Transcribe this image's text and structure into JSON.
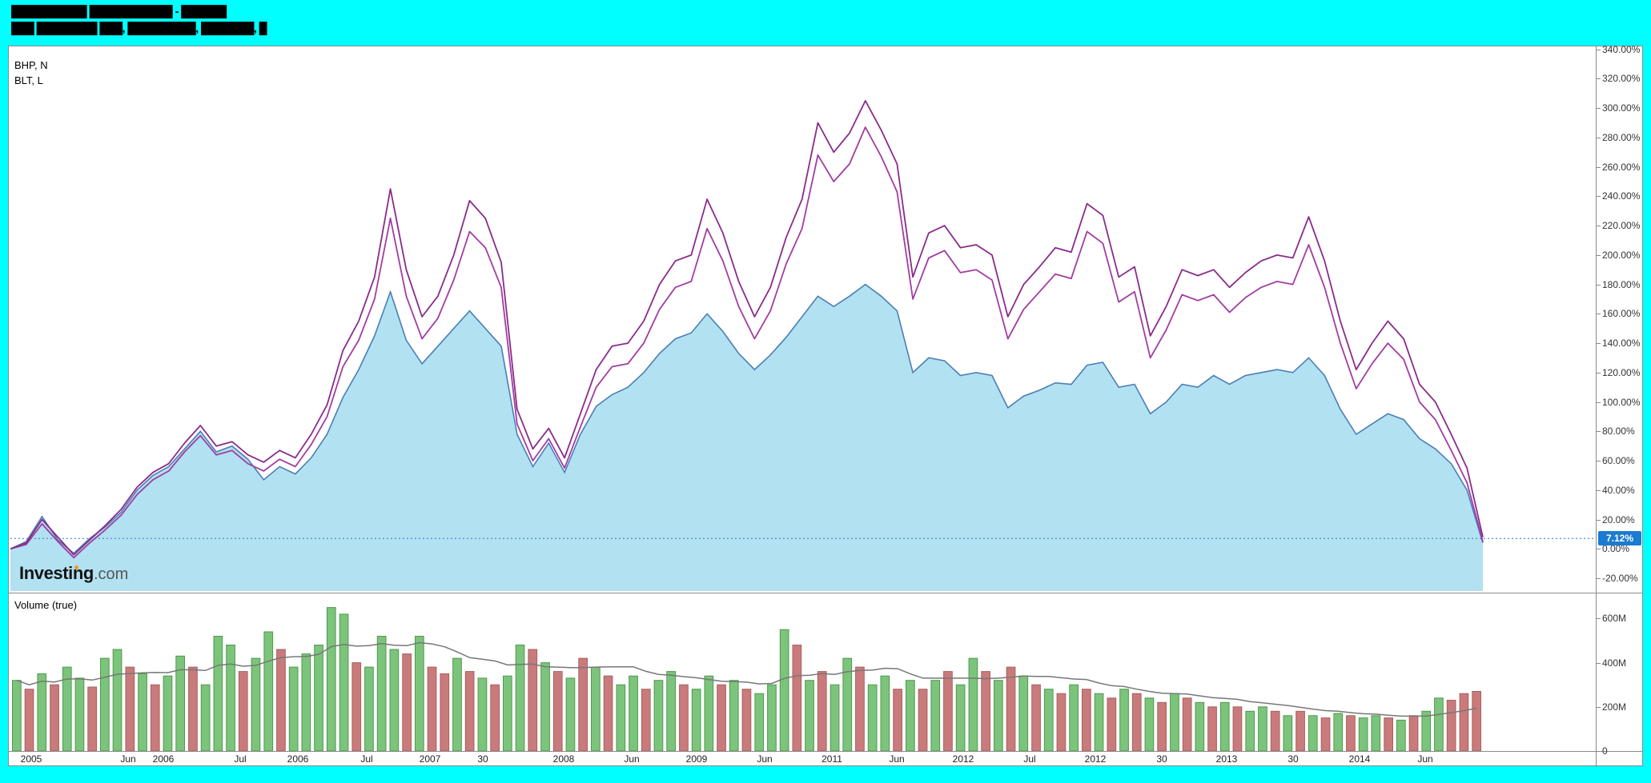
{
  "header": {
    "line1": "██████████ ███████████ - ██████",
    "line2": "███ ████████ ███, █████████, ███████, █"
  },
  "legend": {
    "series1": "BHP, N",
    "series2": "BLT, L"
  },
  "price_axis": {
    "labels": [
      "340.00%",
      "320.00%",
      "300.00%",
      "280.00%",
      "260.00%",
      "240.00%",
      "220.00%",
      "200.00%",
      "180.00%",
      "160.00%",
      "140.00%",
      "120.00%",
      "100.00%",
      "80.00%",
      "60.00%",
      "40.00%",
      "20.00%",
      "0.00%",
      "-20.00%"
    ],
    "badge": "7.12%",
    "badge_color": "#1b7bd0"
  },
  "volume_axis": {
    "labels": [
      "600M",
      "400M",
      "200M",
      "0"
    ]
  },
  "volume_panel": {
    "label": "Volume (true)"
  },
  "watermark": {
    "bold": "Investing",
    "light": ".com",
    "accent_color": "#f7941d"
  },
  "x_axis": {
    "labels": [
      {
        "t": "2005",
        "f": 0.014
      },
      {
        "t": "Jun",
        "f": 0.08
      },
      {
        "t": "2006",
        "f": 0.104
      },
      {
        "t": "Jul",
        "f": 0.156
      },
      {
        "t": "2006",
        "f": 0.195
      },
      {
        "t": "Jul",
        "f": 0.242
      },
      {
        "t": "2007",
        "f": 0.285
      },
      {
        "t": "30",
        "f": 0.321
      },
      {
        "t": "2008",
        "f": 0.376
      },
      {
        "t": "Jun",
        "f": 0.422
      },
      {
        "t": "2009",
        "f": 0.466
      },
      {
        "t": "Jun",
        "f": 0.512
      },
      {
        "t": "2011",
        "f": 0.558
      },
      {
        "t": "Jun",
        "f": 0.602
      },
      {
        "t": "2012",
        "f": 0.647
      },
      {
        "t": "Jul",
        "f": 0.692
      },
      {
        "t": "2012",
        "f": 0.737
      },
      {
        "t": "30",
        "f": 0.782
      },
      {
        "t": "2013",
        "f": 0.826
      },
      {
        "t": "30",
        "f": 0.871
      },
      {
        "t": "2014",
        "f": 0.916
      },
      {
        "t": "Jun",
        "f": 0.961
      }
    ]
  },
  "chart_data": {
    "type": "line",
    "title": "",
    "y_axis": {
      "unit": "%",
      "min": -20,
      "max": 340,
      "tick_step": 20
    },
    "last_value_pct": 7.12,
    "series": [
      {
        "id": "area-series",
        "style": "area",
        "color": "#4a7fb5",
        "fill": "#a5dcee",
        "values": [
          0,
          5,
          22,
          6,
          -3,
          7,
          15,
          25,
          40,
          50,
          56,
          68,
          80,
          66,
          70,
          61,
          47,
          56,
          51,
          62,
          78,
          103,
          122,
          145,
          175,
          142,
          126,
          138,
          150,
          162,
          150,
          138,
          78,
          56,
          72,
          52,
          78,
          97,
          105,
          110,
          120,
          133,
          143,
          147,
          160,
          148,
          133,
          122,
          132,
          144,
          158,
          172,
          165,
          172,
          180,
          172,
          162,
          120,
          130,
          128,
          118,
          120,
          118,
          96,
          104,
          108,
          113,
          112,
          125,
          127,
          110,
          112,
          92,
          100,
          112,
          110,
          118,
          112,
          118,
          120,
          122,
          120,
          130,
          118,
          95,
          78,
          85,
          92,
          88,
          75,
          68,
          58,
          40,
          4
        ]
      },
      {
        "id": "purple-line-lower",
        "style": "line",
        "color": "#a23ca2",
        "values": [
          0,
          3,
          17,
          5,
          -6,
          4,
          13,
          23,
          37,
          47,
          53,
          66,
          77,
          64,
          67,
          58,
          53,
          61,
          56,
          71,
          90,
          124,
          142,
          170,
          225,
          172,
          143,
          157,
          183,
          216,
          205,
          178,
          85,
          60,
          75,
          55,
          83,
          110,
          124,
          126,
          140,
          163,
          178,
          182,
          218,
          196,
          165,
          143,
          162,
          194,
          218,
          268,
          250,
          262,
          287,
          267,
          243,
          170,
          198,
          203,
          188,
          190,
          183,
          143,
          163,
          175,
          187,
          184,
          216,
          208,
          168,
          175,
          130,
          149,
          173,
          169,
          173,
          161,
          171,
          178,
          182,
          180,
          207,
          178,
          140,
          109,
          126,
          140,
          129,
          100,
          88,
          67,
          45,
          5
        ]
      },
      {
        "id": "purple-line-upper",
        "style": "line",
        "color": "#8a2b8a",
        "values": [
          0,
          4,
          20,
          8,
          -4,
          6,
          16,
          27,
          42,
          52,
          58,
          72,
          84,
          70,
          73,
          64,
          59,
          67,
          62,
          78,
          98,
          135,
          155,
          185,
          245,
          190,
          158,
          172,
          200,
          237,
          225,
          195,
          95,
          68,
          82,
          62,
          92,
          122,
          138,
          140,
          155,
          180,
          196,
          200,
          238,
          215,
          182,
          158,
          178,
          212,
          238,
          290,
          270,
          283,
          305,
          285,
          262,
          185,
          215,
          220,
          205,
          207,
          200,
          158,
          180,
          192,
          205,
          202,
          235,
          227,
          185,
          192,
          145,
          165,
          190,
          186,
          190,
          178,
          188,
          196,
          200,
          198,
          226,
          196,
          155,
          122,
          140,
          155,
          143,
          112,
          100,
          78,
          55,
          8
        ]
      }
    ],
    "volume": {
      "unit": "M",
      "up_color": "#7cc47c",
      "up_border": "#4e9a4e",
      "down_color": "#c97b7b",
      "down_border": "#a95f5f",
      "ma_color": "#777777",
      "ma_window": 10,
      "colors": [
        "grgrggrggrgr",
        "ggrgggrggrgg",
        "gggrgggrgrrg",
        "rgrggrgrgrgr",
        "ggrggrggrgrg",
        "ggrgrggrggrg",
        "rgrggrgrgrgr",
        "grgrgrgrgrgr",
        "grggrgrgrgrg",
        "grgrggrrr"
      ],
      "values": [
        320,
        280,
        350,
        300,
        380,
        330,
        290,
        420,
        460,
        380,
        350,
        300,
        340,
        430,
        380,
        300,
        520,
        480,
        360,
        420,
        540,
        460,
        380,
        440,
        480,
        650,
        620,
        400,
        380,
        520,
        460,
        440,
        520,
        380,
        350,
        420,
        360,
        330,
        300,
        340,
        480,
        460,
        400,
        360,
        330,
        420,
        380,
        340,
        300,
        340,
        280,
        320,
        360,
        300,
        280,
        340,
        300,
        320,
        280,
        260,
        300,
        550,
        480,
        320,
        360,
        300,
        420,
        380,
        300,
        340,
        280,
        320,
        280,
        320,
        360,
        300,
        420,
        360,
        320,
        380,
        340,
        300,
        280,
        260,
        300,
        280,
        260,
        240,
        280,
        260,
        240,
        220,
        260,
        240,
        220,
        200,
        220,
        200,
        180,
        200,
        180,
        160,
        180,
        160,
        150,
        170,
        160,
        150,
        160,
        150,
        140,
        160,
        180,
        240,
        230,
        260,
        270
      ]
    }
  }
}
